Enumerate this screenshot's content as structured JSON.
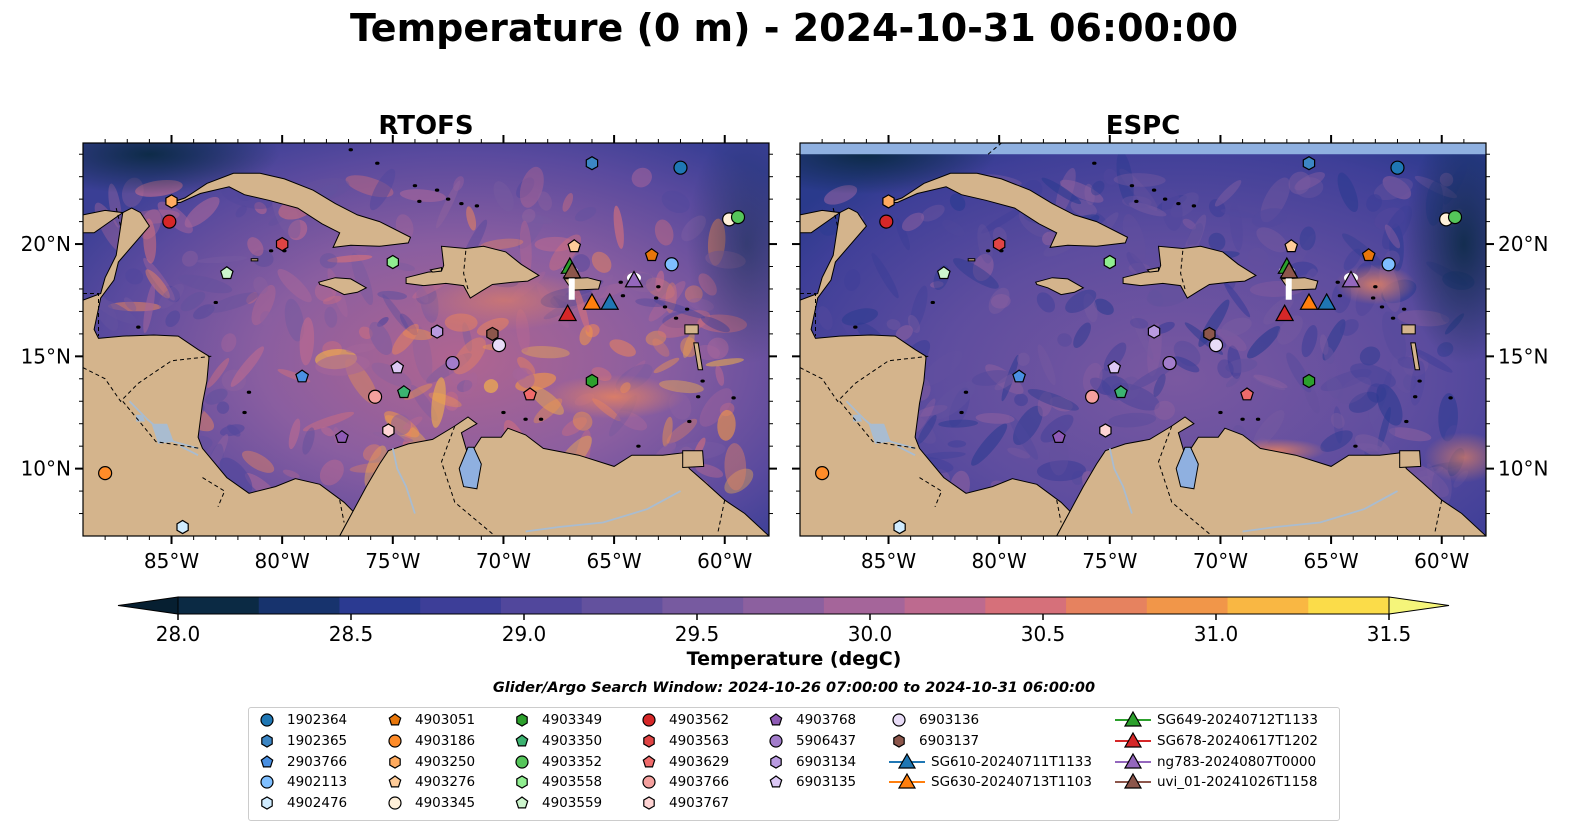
{
  "figure": {
    "title": "Temperature (0 m) - 2024-10-31 06:00:00",
    "colorbar_label": "Temperature (degC)",
    "legend_title": "Glider/Argo Search Window: 2024-10-26 07:00:00 to 2024-10-31 06:00:00"
  },
  "chart_data": {
    "type": "heatmap",
    "title": "Temperature (0 m) - 2024-10-31 06:00:00",
    "panels": [
      {
        "name": "RTOFS",
        "xlim": [
          -89,
          -58
        ],
        "ylim": [
          7,
          24.5
        ],
        "has_data_gap_top": false
      },
      {
        "name": "ESPC",
        "xlim": [
          -89,
          -58
        ],
        "ylim": [
          7,
          24.5
        ],
        "has_data_gap_top": true
      }
    ],
    "x_ticks": [
      "85°W",
      "80°W",
      "75°W",
      "70°W",
      "65°W",
      "60°W"
    ],
    "x_tick_values": [
      -85,
      -80,
      -75,
      -70,
      -65,
      -60
    ],
    "y_ticks": [
      "20°N",
      "15°N",
      "10°N"
    ],
    "y_tick_values": [
      20,
      15,
      10
    ],
    "colorbar": {
      "label": "Temperature (degC)",
      "range": [
        28.0,
        31.5
      ],
      "extend": "both",
      "ticks": [
        "28.0",
        "28.5",
        "29.0",
        "29.5",
        "30.0",
        "30.5",
        "31.0",
        "31.5"
      ],
      "levels": [
        28.0,
        28.25,
        28.5,
        28.75,
        29.0,
        29.25,
        29.5,
        29.75,
        30.0,
        30.25,
        30.5,
        30.75,
        31.0,
        31.25,
        31.5
      ],
      "colors": [
        "#0b2a44",
        "#17336d",
        "#2b3a91",
        "#3d3e98",
        "#51479c",
        "#63519e",
        "#775aa0",
        "#8c609f",
        "#a5659a",
        "#bd6a8f",
        "#d6707a",
        "#e6825f",
        "#f19649",
        "#f9b743",
        "#fbdc49"
      ],
      "under_color": "#061f31",
      "over_color": "#f5f57a"
    },
    "colors": {
      "land": "#d4b48c",
      "lake": "#8fb0e0",
      "missing": "#8fb0e0"
    },
    "series": [
      {
        "name": "1902364",
        "marker": "circle",
        "color": "#1f77b4",
        "lon": -62,
        "lat": 23.4
      },
      {
        "name": "1902365",
        "marker": "hexagon",
        "color": "#3c86c4",
        "lon": -66,
        "lat": 23.6
      },
      {
        "name": "2903766",
        "marker": "pentagon",
        "color": "#4a90e2",
        "lon": -79.1,
        "lat": 14.1
      },
      {
        "name": "4902113",
        "marker": "circle",
        "color": "#7fbfff",
        "lon": -62.4,
        "lat": 19.1
      },
      {
        "name": "4902476",
        "marker": "hexagon",
        "color": "#d0ecff",
        "lon": -84.5,
        "lat": 7.4
      },
      {
        "name": "4903051",
        "marker": "pentagon",
        "color": "#e8760a",
        "lon": -63.3,
        "lat": 19.5
      },
      {
        "name": "4903186",
        "marker": "circle",
        "color": "#ff8c29",
        "lon": -88,
        "lat": 9.8
      },
      {
        "name": "4903250",
        "marker": "hexagon",
        "color": "#ffab5f",
        "lon": -85,
        "lat": 21.9
      },
      {
        "name": "4903276",
        "marker": "pentagon",
        "color": "#ffcc99",
        "lon": -66.8,
        "lat": 19.9
      },
      {
        "name": "4903345",
        "marker": "circle",
        "color": "#fff0d9",
        "lon": -59.8,
        "lat": 21.1
      },
      {
        "name": "4903349",
        "marker": "hexagon",
        "color": "#2ca02c",
        "lon": -66,
        "lat": 13.9
      },
      {
        "name": "4903350",
        "marker": "pentagon",
        "color": "#3cb371",
        "lon": -74.5,
        "lat": 13.4
      },
      {
        "name": "4903352",
        "marker": "circle",
        "color": "#55c55a",
        "lon": -59.4,
        "lat": 21.2
      },
      {
        "name": "4903558",
        "marker": "hexagon",
        "color": "#90ee90",
        "lon": -75,
        "lat": 19.2
      },
      {
        "name": "4903559",
        "marker": "pentagon",
        "color": "#cdf5cd",
        "lon": -82.5,
        "lat": 18.7
      },
      {
        "name": "4903562",
        "marker": "circle",
        "color": "#d62728",
        "lon": -85.1,
        "lat": 21
      },
      {
        "name": "4903563",
        "marker": "hexagon",
        "color": "#e04444",
        "lon": -80,
        "lat": 20
      },
      {
        "name": "4903629",
        "marker": "pentagon",
        "color": "#f06b6b",
        "lon": -68.8,
        "lat": 13.3
      },
      {
        "name": "4903766",
        "marker": "circle",
        "color": "#f4a09e",
        "lon": -75.8,
        "lat": 13.2
      },
      {
        "name": "4903767",
        "marker": "hexagon",
        "color": "#ffd4d4",
        "lon": -75.2,
        "lat": 11.7
      },
      {
        "name": "4903768",
        "marker": "pentagon",
        "color": "#8e5ab5",
        "lon": -77.3,
        "lat": 11.4
      },
      {
        "name": "5906437",
        "marker": "circle",
        "color": "#a27ccb",
        "lon": -72.3,
        "lat": 14.7
      },
      {
        "name": "6903134",
        "marker": "hexagon",
        "color": "#b99ae0",
        "lon": -73,
        "lat": 16.1
      },
      {
        "name": "6903135",
        "marker": "pentagon",
        "color": "#dcc8f5",
        "lon": -74.8,
        "lat": 14.5
      },
      {
        "name": "6903136",
        "marker": "circle",
        "color": "#e8dcf7",
        "lon": -70.2,
        "lat": 15.5
      },
      {
        "name": "6903137",
        "marker": "hexagon",
        "color": "#8c564b",
        "lon": -70.5,
        "lat": 16
      },
      {
        "name": "SG610-20240711T1133",
        "marker": "triangle",
        "color": "#1f77b4",
        "lon": -65.2,
        "lat": 17.4
      },
      {
        "name": "SG630-20240713T1103",
        "marker": "triangle",
        "color": "#ff7f0e",
        "lon": -66,
        "lat": 17.4
      },
      {
        "name": "SG649-20240712T1133",
        "marker": "triangle",
        "color": "#2ca02c",
        "lon": -67,
        "lat": 19
      },
      {
        "name": "SG678-20240617T1202",
        "marker": "triangle",
        "color": "#d62728",
        "lon": -67.1,
        "lat": 16.9
      },
      {
        "name": "ng783-20240807T0000",
        "marker": "triangle",
        "color": "#9467bd",
        "lon": -64.1,
        "lat": 18.4
      },
      {
        "name": "uvi_01-20241026T1158",
        "marker": "triangle",
        "color": "#8c564b",
        "lon": -66.9,
        "lat": 18.8
      }
    ]
  }
}
